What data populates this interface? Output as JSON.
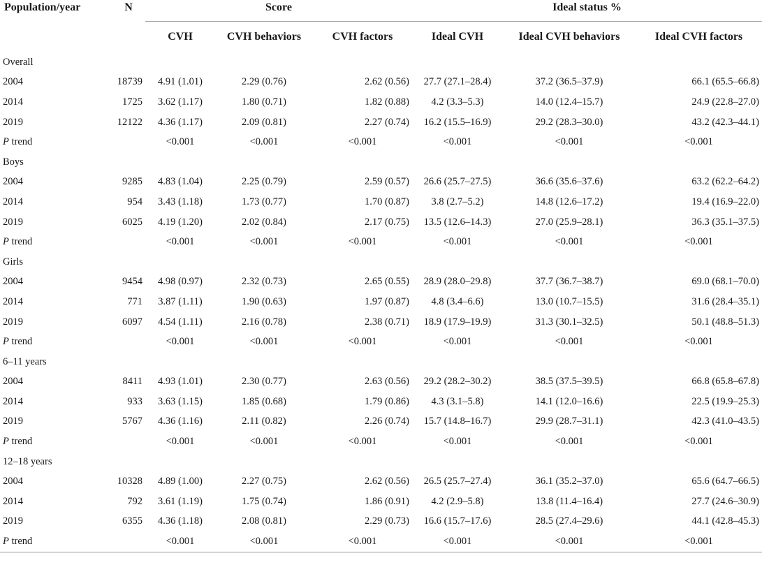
{
  "header": {
    "population_year": "Population/year",
    "n": "N",
    "score": "Score",
    "ideal_status": "Ideal status %",
    "cvh": "CVH",
    "cvh_behaviors": "CVH behaviors",
    "cvh_factors": "CVH factors",
    "ideal_cvh": "Ideal CVH",
    "ideal_cvh_behaviors": "Ideal CVH behaviors",
    "ideal_cvh_factors": "Ideal CVH factors"
  },
  "groups": [
    {
      "name": "Overall",
      "rows": [
        {
          "year": "2004",
          "n": "18739",
          "cvh": "4.91 (1.01)",
          "beh": "2.29 (0.76)",
          "fac": "2.62 (0.56)",
          "icvh": "27.7 (27.1–28.4)",
          "ibeh": "37.2 (36.5–37.9)",
          "ifac": "66.1 (65.5–66.8)"
        },
        {
          "year": "2014",
          "n": "1725",
          "cvh": "3.62 (1.17)",
          "beh": "1.80 (0.71)",
          "fac": "1.82 (0.88)",
          "icvh": "4.2 (3.3–5.3)",
          "ibeh": "14.0 (12.4–15.7)",
          "ifac": "24.9 (22.8–27.0)"
        },
        {
          "year": "2019",
          "n": "12122",
          "cvh": "4.36 (1.17)",
          "beh": "2.09 (0.81)",
          "fac": "2.27 (0.74)",
          "icvh": "16.2 (15.5–16.9)",
          "ibeh": "29.2 (28.3–30.0)",
          "ifac": "43.2 (42.3–44.1)"
        }
      ],
      "trend": {
        "p": "P",
        "label": " trend",
        "cvh": "<0.001",
        "beh": "<0.001",
        "fac": "<0.001",
        "icvh": "<0.001",
        "ibeh": "<0.001",
        "ifac": "<0.001"
      }
    },
    {
      "name": "Boys",
      "rows": [
        {
          "year": "2004",
          "n": "9285",
          "cvh": "4.83 (1.04)",
          "beh": "2.25 (0.79)",
          "fac": "2.59 (0.57)",
          "icvh": "26.6 (25.7–27.5)",
          "ibeh": "36.6 (35.6–37.6)",
          "ifac": "63.2 (62.2–64.2)"
        },
        {
          "year": "2014",
          "n": "954",
          "cvh": "3.43 (1.18)",
          "beh": "1.73 (0.77)",
          "fac": "1.70 (0.87)",
          "icvh": "3.8 (2.7–5.2)",
          "ibeh": "14.8 (12.6–17.2)",
          "ifac": "19.4 (16.9–22.0)"
        },
        {
          "year": "2019",
          "n": "6025",
          "cvh": "4.19 (1.20)",
          "beh": "2.02 (0.84)",
          "fac": "2.17 (0.75)",
          "icvh": "13.5 (12.6–14.3)",
          "ibeh": "27.0 (25.9–28.1)",
          "ifac": "36.3 (35.1–37.5)"
        }
      ],
      "trend": {
        "p": "P",
        "label": " trend",
        "cvh": "<0.001",
        "beh": "<0.001",
        "fac": "<0.001",
        "icvh": "<0.001",
        "ibeh": "<0.001",
        "ifac": "<0.001"
      }
    },
    {
      "name": "Girls",
      "rows": [
        {
          "year": "2004",
          "n": "9454",
          "cvh": "4.98 (0.97)",
          "beh": "2.32 (0.73)",
          "fac": "2.65 (0.55)",
          "icvh": "28.9 (28.0–29.8)",
          "ibeh": "37.7 (36.7–38.7)",
          "ifac": "69.0 (68.1–70.0)"
        },
        {
          "year": "2014",
          "n": "771",
          "cvh": "3.87 (1.11)",
          "beh": "1.90 (0.63)",
          "fac": "1.97 (0.87)",
          "icvh": "4.8 (3.4–6.6)",
          "ibeh": "13.0 (10.7–15.5)",
          "ifac": "31.6 (28.4–35.1)"
        },
        {
          "year": "2019",
          "n": "6097",
          "cvh": "4.54 (1.11)",
          "beh": "2.16 (0.78)",
          "fac": "2.38 (0.71)",
          "icvh": "18.9 (17.9–19.9)",
          "ibeh": "31.3 (30.1–32.5)",
          "ifac": "50.1 (48.8–51.3)"
        }
      ],
      "trend": {
        "p": "P",
        "label": " trend",
        "cvh": "<0.001",
        "beh": "<0.001",
        "fac": "<0.001",
        "icvh": "<0.001",
        "ibeh": "<0.001",
        "ifac": "<0.001"
      }
    },
    {
      "name": "6–11 years",
      "rows": [
        {
          "year": "2004",
          "n": "8411",
          "cvh": "4.93 (1.01)",
          "beh": "2.30 (0.77)",
          "fac": "2.63 (0.56)",
          "icvh": "29.2 (28.2–30.2)",
          "ibeh": "38.5 (37.5–39.5)",
          "ifac": "66.8 (65.8–67.8)"
        },
        {
          "year": "2014",
          "n": "933",
          "cvh": "3.63 (1.15)",
          "beh": "1.85 (0.68)",
          "fac": "1.79 (0.86)",
          "icvh": "4.3 (3.1–5.8)",
          "ibeh": "14.1 (12.0–16.6)",
          "ifac": "22.5 (19.9–25.3)"
        },
        {
          "year": "2019",
          "n": "5767",
          "cvh": "4.36 (1.16)",
          "beh": "2.11 (0.82)",
          "fac": "2.26 (0.74)",
          "icvh": "15.7 (14.8–16.7)",
          "ibeh": "29.9 (28.7–31.1)",
          "ifac": "42.3 (41.0–43.5)"
        }
      ],
      "trend": {
        "p": "P",
        "label": " trend",
        "cvh": "<0.001",
        "beh": "<0.001",
        "fac": "<0.001",
        "icvh": "<0.001",
        "ibeh": "<0.001",
        "ifac": "<0.001"
      }
    },
    {
      "name": "12–18 years",
      "rows": [
        {
          "year": "2004",
          "n": "10328",
          "cvh": "4.89 (1.00)",
          "beh": "2.27 (0.75)",
          "fac": "2.62 (0.56)",
          "icvh": "26.5 (25.7–27.4)",
          "ibeh": "36.1 (35.2–37.0)",
          "ifac": "65.6 (64.7–66.5)"
        },
        {
          "year": "2014",
          "n": "792",
          "cvh": "3.61 (1.19)",
          "beh": "1.75 (0.74)",
          "fac": "1.86 (0.91)",
          "icvh": "4.2 (2.9–5.8)",
          "ibeh": "13.8 (11.4–16.4)",
          "ifac": "27.7 (24.6–30.9)"
        },
        {
          "year": "2019",
          "n": "6355",
          "cvh": "4.36 (1.18)",
          "beh": "2.08 (0.81)",
          "fac": "2.29 (0.73)",
          "icvh": "16.6 (15.7–17.6)",
          "ibeh": "28.5 (27.4–29.6)",
          "ifac": "44.1 (42.8–45.3)"
        }
      ],
      "trend": {
        "p": "P",
        "label": " trend",
        "cvh": "<0.001",
        "beh": "<0.001",
        "fac": "<0.001",
        "icvh": "<0.001",
        "ibeh": "<0.001",
        "ifac": "<0.001"
      }
    }
  ]
}
